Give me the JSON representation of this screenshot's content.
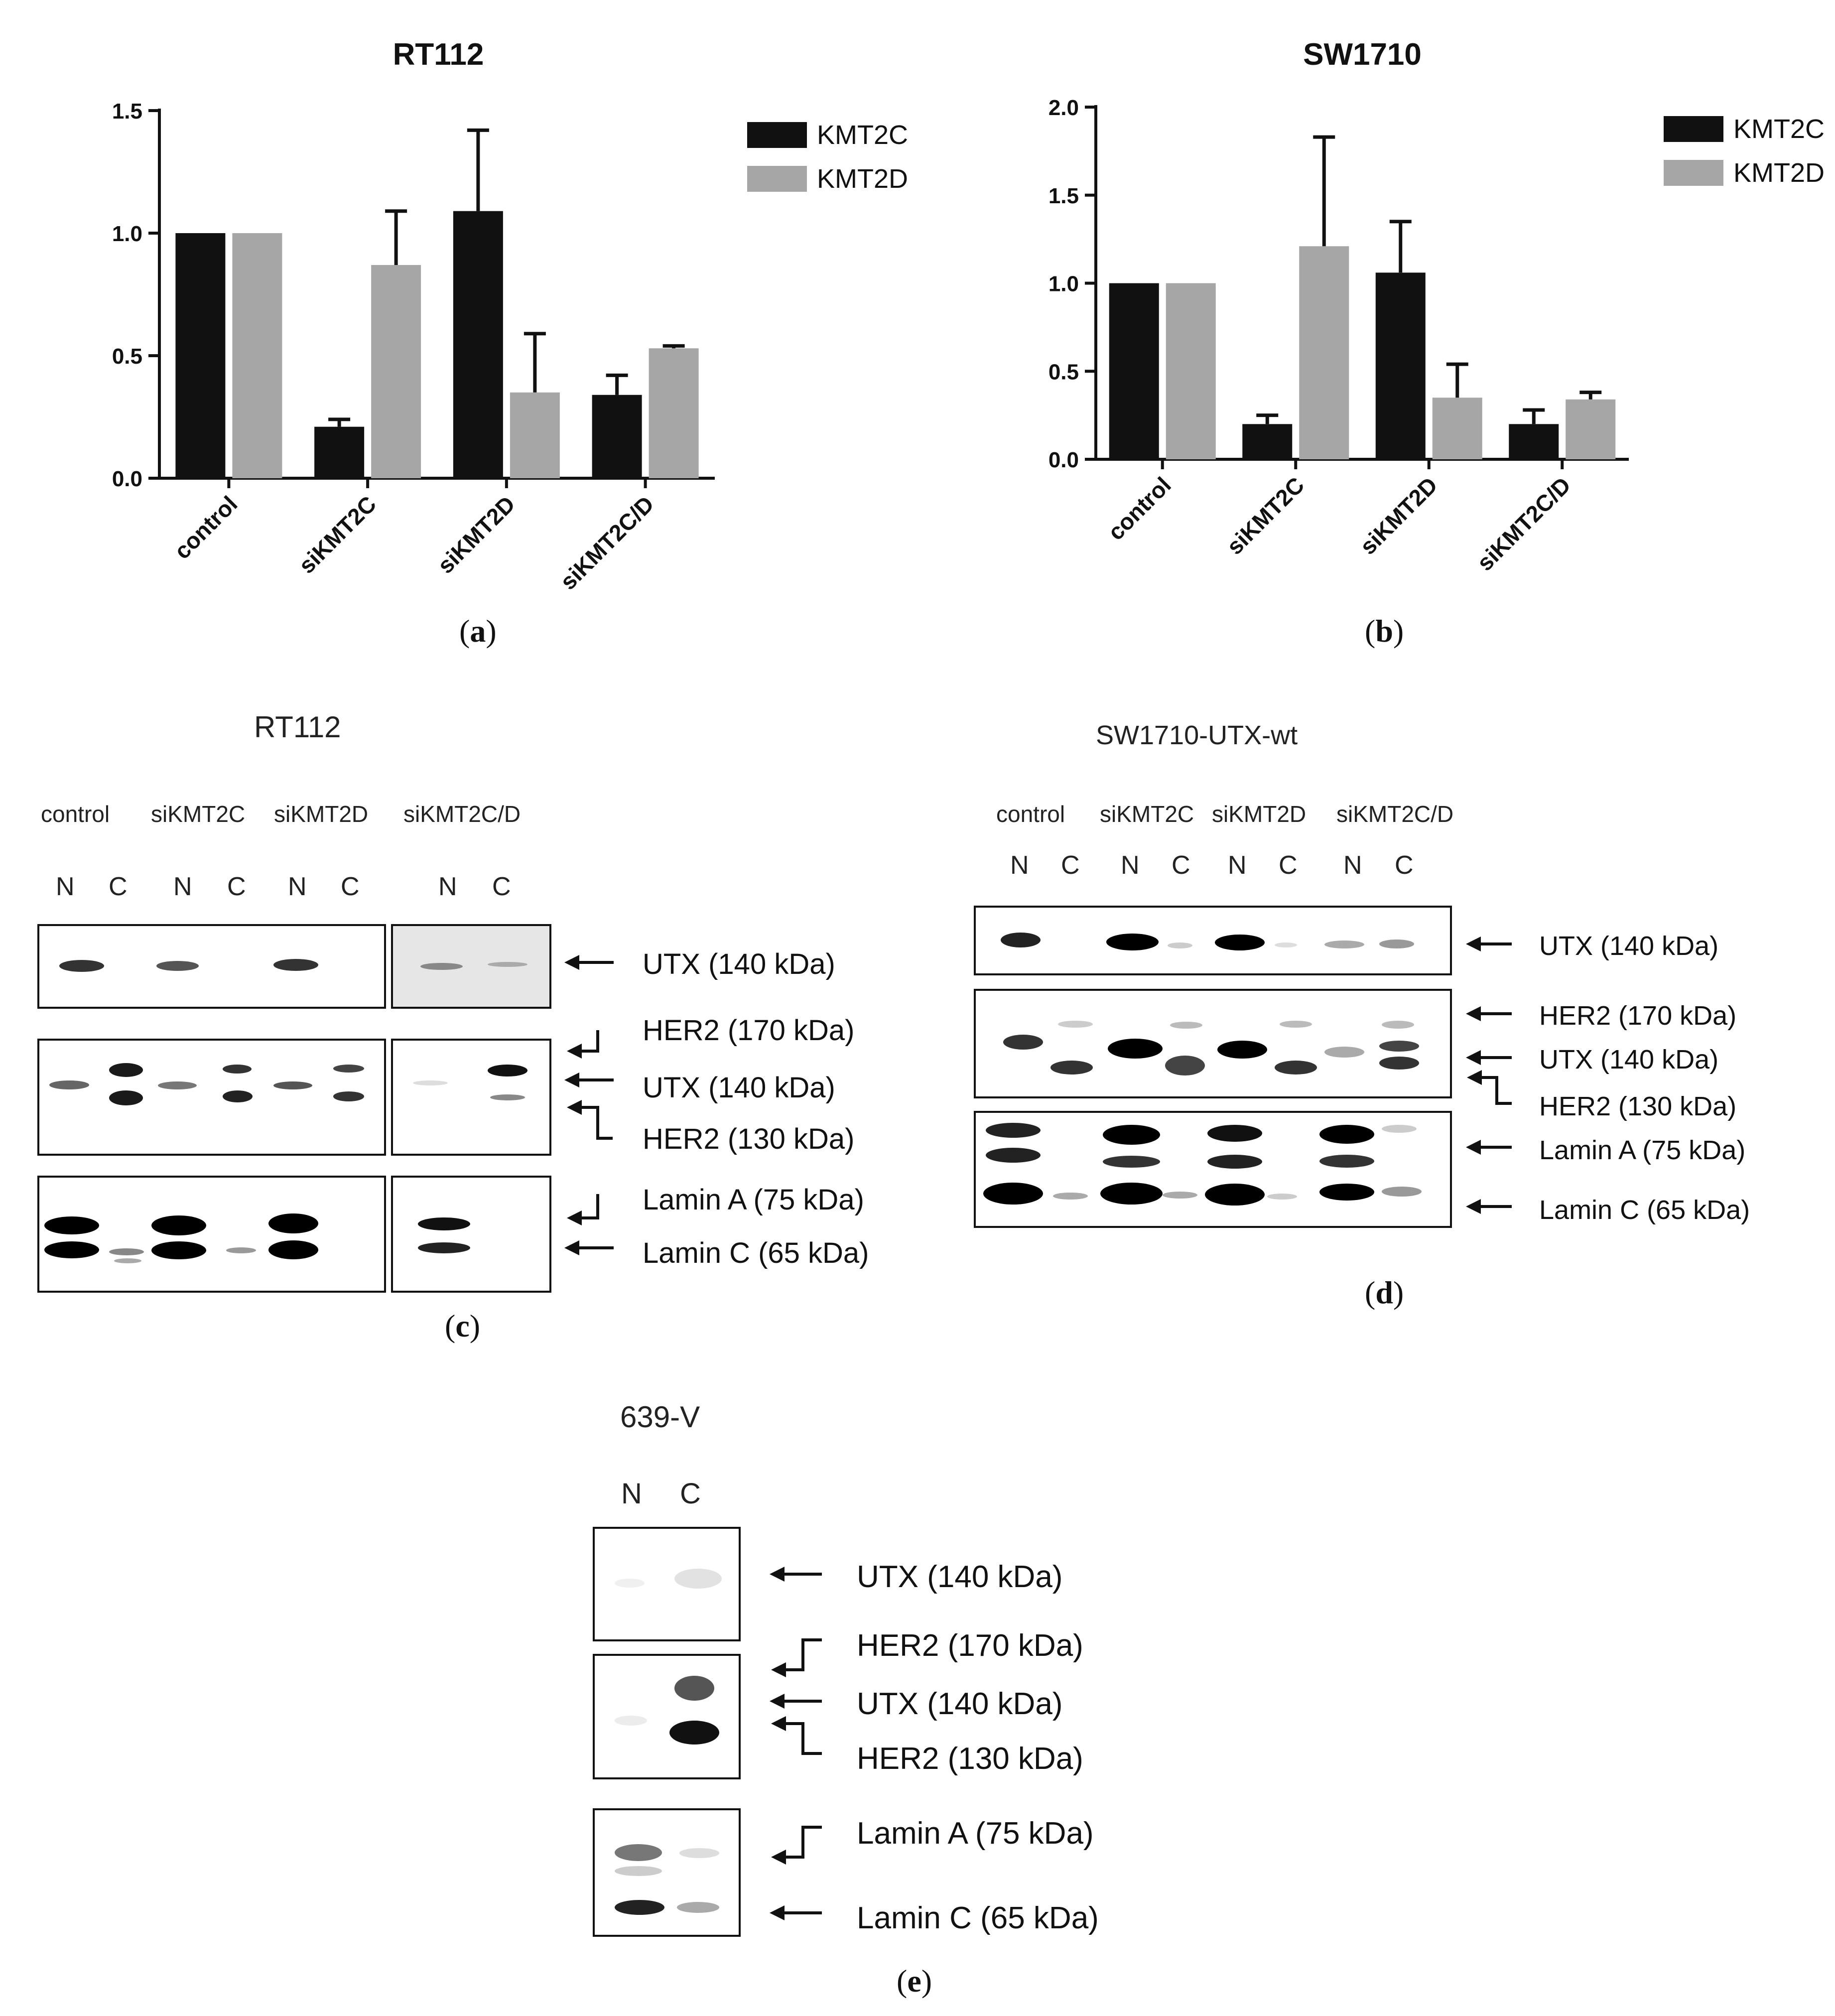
{
  "colors": {
    "kmt2c": "#111111",
    "kmt2d": "#a6a6a6",
    "axis": "#111111"
  },
  "chart_data": [
    {
      "type": "bar",
      "panel": "(a)",
      "title": "RT112",
      "categories": [
        "control",
        "siKMT2C",
        "siKMT2D",
        "siKMT2C/D"
      ],
      "series": [
        {
          "name": "KMT2C",
          "values": [
            1.0,
            0.21,
            1.09,
            0.34
          ],
          "errors": [
            0.0,
            0.03,
            0.33,
            0.08
          ]
        },
        {
          "name": "KMT2D",
          "values": [
            1.0,
            0.87,
            0.35,
            0.53
          ],
          "errors": [
            0.0,
            0.22,
            0.24,
            0.01
          ]
        }
      ],
      "ylim": [
        0,
        1.5
      ],
      "yticks": [
        "0.0",
        "0.5",
        "1.0",
        "1.5"
      ],
      "xlabel": "",
      "ylabel": "",
      "legend": "top-right"
    },
    {
      "type": "bar",
      "panel": "(b)",
      "title": "SW1710",
      "categories": [
        "control",
        "siKMT2C",
        "siKMT2D",
        "siKMT2C/D"
      ],
      "series": [
        {
          "name": "KMT2C",
          "values": [
            1.0,
            0.2,
            1.06,
            0.2
          ],
          "errors": [
            0.0,
            0.05,
            0.29,
            0.08
          ]
        },
        {
          "name": "KMT2D",
          "values": [
            1.0,
            1.21,
            0.35,
            0.34
          ],
          "errors": [
            0.0,
            0.62,
            0.19,
            0.04
          ]
        }
      ],
      "ylim": [
        0,
        2.0
      ],
      "yticks": [
        "0.0",
        "0.5",
        "1.0",
        "1.5",
        "2.0"
      ],
      "xlabel": "",
      "ylabel": "",
      "legend": "top-right"
    }
  ],
  "blots": {
    "c": {
      "letter": "c",
      "title": "RT112",
      "groups": [
        "control",
        "siKMT2C",
        "siKMT2D",
        "siKMT2C/D"
      ],
      "lanes": [
        "N",
        "C",
        "N",
        "C",
        "N",
        "C",
        "N",
        "C"
      ],
      "bands": [
        "UTX (140 kDa)",
        "HER2 (170 kDa)",
        "UTX (140 kDa)",
        "HER2 (130 kDa)",
        "Lamin A (75 kDa)",
        "Lamin C (65 kDa)"
      ]
    },
    "d": {
      "letter": "d",
      "title": "SW1710-UTX-wt",
      "groups": [
        "control",
        "siKMT2C",
        "siKMT2D",
        "siKMT2C/D"
      ],
      "lanes": [
        "N",
        "C",
        "N",
        "C",
        "N",
        "C",
        "N",
        "C"
      ],
      "bands": [
        "UTX (140 kDa)",
        "HER2 (170 kDa)",
        "UTX (140 kDa)",
        "HER2 (130 kDa)",
        "Lamin A (75 kDa)",
        "Lamin C (65 kDa)"
      ]
    },
    "e": {
      "letter": "e",
      "title": "639-V",
      "lanes": [
        "N",
        "C"
      ],
      "bands": [
        "UTX (140 kDa)",
        "HER2 (170 kDa)",
        "UTX (140 kDa)",
        "HER2 (130 kDa)",
        "Lamin A (75 kDa)",
        "Lamin C (65 kDa)"
      ]
    }
  }
}
